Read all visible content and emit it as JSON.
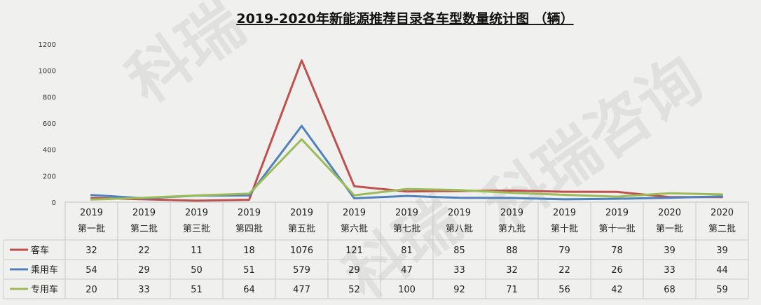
{
  "watermark": {
    "text_top": "科瑞",
    "text_right": "科瑞咨询",
    "text_bottom": "科瑞"
  },
  "chart_data": {
    "type": "line",
    "title": "2019-2020年新能源推荐目录各车型数量统计图 （辆）",
    "categories": [
      {
        "year": "2019",
        "batch": "第一批"
      },
      {
        "year": "2019",
        "batch": "第二批"
      },
      {
        "year": "2019",
        "batch": "第三批"
      },
      {
        "year": "2019",
        "batch": "第四批"
      },
      {
        "year": "2019",
        "batch": "第五批"
      },
      {
        "year": "2019",
        "batch": "第六批"
      },
      {
        "year": "2019",
        "batch": "第七批"
      },
      {
        "year": "2019",
        "batch": "第八批"
      },
      {
        "year": "2019",
        "batch": "第九批"
      },
      {
        "year": "2019",
        "batch": "第十批"
      },
      {
        "year": "2019",
        "batch": "第十一批"
      },
      {
        "year": "2020",
        "batch": "第一批"
      },
      {
        "year": "2020",
        "batch": "第二批"
      }
    ],
    "series": [
      {
        "name": "客车",
        "color": "#c0504d",
        "values": [
          32,
          22,
          11,
          18,
          1076,
          121,
          81,
          85,
          88,
          79,
          78,
          39,
          39
        ]
      },
      {
        "name": "乘用车",
        "color": "#4f81bd",
        "values": [
          54,
          29,
          50,
          51,
          579,
          29,
          47,
          33,
          32,
          22,
          26,
          33,
          44
        ]
      },
      {
        "name": "专用车",
        "color": "#9bbb59",
        "values": [
          20,
          33,
          51,
          64,
          477,
          52,
          100,
          92,
          71,
          56,
          42,
          68,
          59
        ]
      }
    ],
    "ylim": [
      0,
      1200
    ],
    "yticks": [
      0,
      200,
      400,
      600,
      800,
      1000,
      1200
    ],
    "grid": false,
    "legend": "data-table"
  }
}
